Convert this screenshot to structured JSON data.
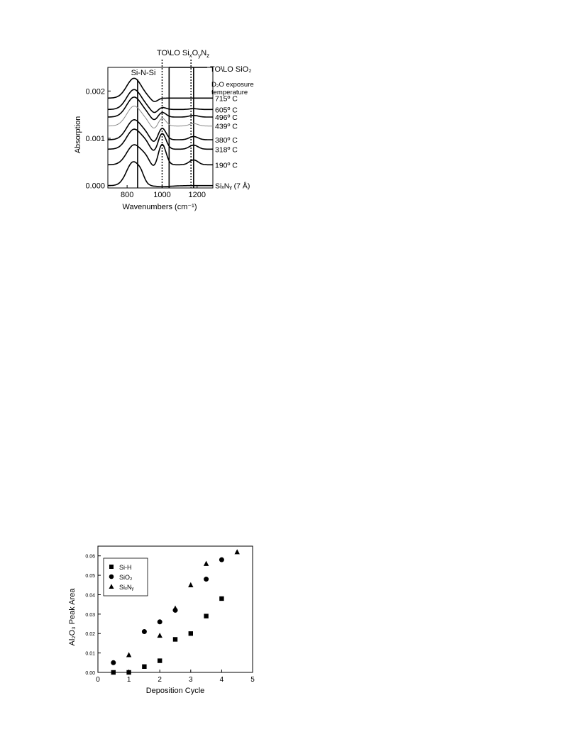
{
  "chart_data": [
    {
      "type": "line",
      "xlabel": "Wavenumbers (cm⁻¹)",
      "ylabel": "Absorption",
      "xlim": [
        690,
        1290
      ],
      "ylim": [
        -5e-05,
        0.0025
      ],
      "xticks": [
        800,
        1000,
        1200
      ],
      "yticks": [
        0.0,
        0.001,
        0.002
      ],
      "ytick_labels": [
        "0.000",
        "0.001",
        "0.002"
      ],
      "peak_labels": {
        "si_n_si": "Si-N-Si",
        "sioxny_prefix": "TO\\LO Si",
        "sioxny_subs": [
          "x",
          "y",
          "z"
        ],
        "sio2": "TO\\LO SiO₂"
      },
      "legend_title_line1": "D₂O exposure",
      "legend_title_line2": "temperature",
      "reference_lines": {
        "solid": [
          860,
          1040,
          1180
        ],
        "dotted": [
          1000,
          1165
        ]
      },
      "series": [
        {
          "name": "715º C",
          "offset": 0.00185,
          "style": "solid"
        },
        {
          "name": "605º C",
          "offset": 0.00161,
          "style": "solid"
        },
        {
          "name": "496º C",
          "offset": 0.00145,
          "style": "solid"
        },
        {
          "name": "439º C",
          "offset": 0.00126,
          "style": "light"
        },
        {
          "name": "380º C",
          "offset": 0.00097,
          "style": "solid"
        },
        {
          "name": "318º C",
          "offset": 0.00077,
          "style": "solid"
        },
        {
          "name": "190º C",
          "offset": 0.00044,
          "style": "solid"
        },
        {
          "name": "SiₓNᵧ (7 Å)",
          "offset": 0.0,
          "style": "solid"
        }
      ]
    },
    {
      "type": "scatter",
      "xlabel": "Deposition Cycle",
      "ylabel": "Al₂O₃ Peak Area",
      "xlim": [
        0,
        5
      ],
      "ylim": [
        0,
        0.065
      ],
      "xticks": [
        0,
        1,
        2,
        3,
        4,
        5
      ],
      "yticks": [
        0.0,
        0.01,
        0.02,
        0.03,
        0.04,
        0.05,
        0.06
      ],
      "ytick_labels": [
        "0.00",
        "0.01",
        "0.02",
        "0.03",
        "0.04",
        "0.05",
        "0.06"
      ],
      "legend_position": "top-left",
      "series": [
        {
          "name": "Si-H",
          "marker": "square",
          "x": [
            0.5,
            1.0,
            1.5,
            2.0,
            2.5,
            3.0,
            3.5,
            4.0
          ],
          "y": [
            0.0,
            0.0,
            0.003,
            0.006,
            0.017,
            0.02,
            0.029,
            0.038
          ]
        },
        {
          "name": "SiO₂",
          "marker": "circle",
          "x": [
            0.5,
            1.5,
            2.0,
            2.5,
            3.5,
            4.0
          ],
          "y": [
            0.005,
            0.021,
            0.026,
            0.032,
            0.048,
            0.058
          ]
        },
        {
          "name": "SiₓNᵧ",
          "marker": "triangle",
          "x": [
            1.0,
            2.0,
            2.5,
            3.0,
            3.5,
            4.5
          ],
          "y": [
            0.009,
            0.019,
            0.033,
            0.045,
            0.056,
            0.062
          ]
        }
      ]
    }
  ]
}
